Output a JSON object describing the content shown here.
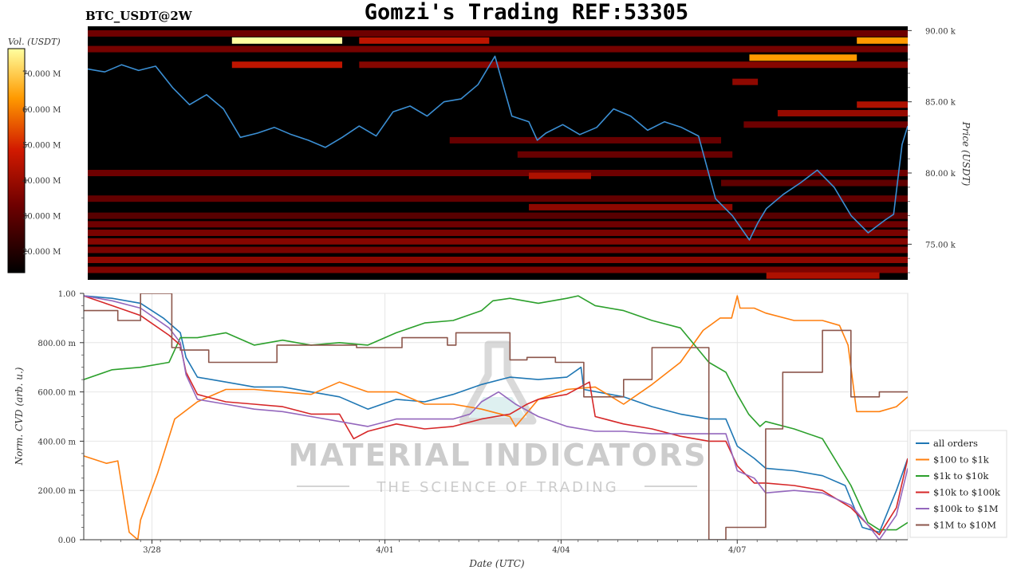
{
  "header": {
    "title": "Gomzi's Trading REF:53305",
    "symbol": "BTC_USDT@2W"
  },
  "colorbar": {
    "label": "Vol. (USDT)",
    "ticks": [
      "20.000 M",
      "30.000 M",
      "40.000 M",
      "50.000 M",
      "60.000 M",
      "70.000 M"
    ],
    "tick_values": [
      20,
      30,
      40,
      50,
      60,
      70
    ],
    "range": [
      14,
      77
    ]
  },
  "watermark": {
    "line1": "MATERIAL INDICATORS",
    "line2": "THE SCIENCE OF TRADING"
  },
  "chart_data": [
    {
      "type": "heatmap",
      "ylabel": "Price (USDT)",
      "yticks": [
        "75.00 k",
        "80.00 k",
        "85.00 k",
        "90.00 k"
      ],
      "ytick_values": [
        75,
        80,
        85,
        90
      ],
      "ylim": [
        72.5,
        90.3
      ],
      "xlim": [
        0,
        14.5
      ],
      "series": [
        {
          "name": "price",
          "color": "#3b8fd4",
          "x": [
            0,
            0.3,
            0.6,
            0.9,
            1.2,
            1.5,
            1.8,
            2.1,
            2.4,
            2.7,
            3.0,
            3.3,
            3.6,
            3.9,
            4.2,
            4.5,
            4.8,
            5.1,
            5.4,
            5.7,
            6.0,
            6.3,
            6.6,
            6.9,
            7.2,
            7.5,
            7.8,
            7.95,
            8.1,
            8.4,
            8.7,
            9.0,
            9.3,
            9.6,
            9.9,
            10.2,
            10.5,
            10.8,
            11.1,
            11.4,
            11.7,
            11.85,
            12.0,
            12.3,
            12.6,
            12.9,
            13.2,
            13.5,
            13.8,
            14.1,
            14.25,
            14.4,
            14.5
          ],
          "y": [
            87.3,
            87.1,
            87.6,
            87.2,
            87.5,
            86.0,
            84.8,
            85.5,
            84.5,
            82.5,
            82.8,
            83.2,
            82.7,
            82.3,
            81.8,
            82.5,
            83.3,
            82.6,
            84.3,
            84.7,
            84.0,
            85.0,
            85.2,
            86.2,
            88.2,
            84.0,
            83.6,
            82.3,
            82.8,
            83.4,
            82.7,
            83.2,
            84.5,
            84.0,
            83.0,
            83.6,
            83.2,
            82.6,
            78.2,
            77.0,
            75.3,
            76.5,
            77.5,
            78.5,
            79.3,
            80.2,
            79.0,
            77.0,
            75.8,
            76.7,
            77.1,
            82.0,
            83.3
          ]
        }
      ],
      "bands": [
        {
          "y": 89.8,
          "x0": 0,
          "x1": 14.5,
          "level": 0.3
        },
        {
          "y": 89.3,
          "x0": 2.55,
          "x1": 4.5,
          "level": 1.0
        },
        {
          "y": 89.3,
          "x0": 4.8,
          "x1": 7.1,
          "level": 0.5
        },
        {
          "y": 89.3,
          "x0": 13.6,
          "x1": 14.5,
          "level": 0.78
        },
        {
          "y": 88.7,
          "x0": 0,
          "x1": 14.5,
          "level": 0.32
        },
        {
          "y": 88.1,
          "x0": 11.7,
          "x1": 13.6,
          "level": 0.78
        },
        {
          "y": 87.6,
          "x0": 2.55,
          "x1": 4.5,
          "level": 0.5
        },
        {
          "y": 87.6,
          "x0": 4.8,
          "x1": 14.5,
          "level": 0.36
        },
        {
          "y": 86.4,
          "x0": 11.4,
          "x1": 11.85,
          "level": 0.38
        },
        {
          "y": 84.8,
          "x0": 13.6,
          "x1": 14.5,
          "level": 0.46
        },
        {
          "y": 84.2,
          "x0": 12.2,
          "x1": 14.5,
          "level": 0.4
        },
        {
          "y": 83.4,
          "x0": 11.6,
          "x1": 14.5,
          "level": 0.3
        },
        {
          "y": 82.3,
          "x0": 6.4,
          "x1": 11.2,
          "level": 0.28
        },
        {
          "y": 81.3,
          "x0": 7.6,
          "x1": 11.4,
          "level": 0.28
        },
        {
          "y": 80.0,
          "x0": 0,
          "x1": 14.5,
          "level": 0.3
        },
        {
          "y": 79.8,
          "x0": 7.8,
          "x1": 8.9,
          "level": 0.46
        },
        {
          "y": 79.3,
          "x0": 11.2,
          "x1": 14.5,
          "level": 0.26
        },
        {
          "y": 78.2,
          "x0": 0,
          "x1": 14.5,
          "level": 0.27
        },
        {
          "y": 77.6,
          "x0": 7.8,
          "x1": 11.4,
          "level": 0.38
        },
        {
          "y": 77.0,
          "x0": 0,
          "x1": 14.5,
          "level": 0.24
        },
        {
          "y": 76.4,
          "x0": 0,
          "x1": 14.5,
          "level": 0.3
        },
        {
          "y": 75.8,
          "x0": 0,
          "x1": 14.5,
          "level": 0.33
        },
        {
          "y": 75.2,
          "x0": 0,
          "x1": 14.5,
          "level": 0.36
        },
        {
          "y": 74.6,
          "x0": 0,
          "x1": 14.5,
          "level": 0.33
        },
        {
          "y": 73.9,
          "x0": 0,
          "x1": 14.5,
          "level": 0.38
        },
        {
          "y": 73.2,
          "x0": 0,
          "x1": 14.5,
          "level": 0.34
        },
        {
          "y": 72.8,
          "x0": 12.0,
          "x1": 14.0,
          "level": 0.46
        }
      ]
    },
    {
      "type": "line",
      "xlabel": "Date (UTC)",
      "ylabel": "Norm. CVD (arb. u.)",
      "ylim": [
        0,
        1
      ],
      "xlim": [
        0,
        14.5
      ],
      "yticks": [
        "0.00",
        "200.00 m",
        "400.00 m",
        "600.00 m",
        "800.00 m",
        "1.00"
      ],
      "ytick_values": [
        0,
        0.2,
        0.4,
        0.6,
        0.8,
        1.0
      ],
      "xticks": [
        "3/28",
        "4/01",
        "4/04",
        "4/07"
      ],
      "xtick_values": [
        1.2,
        5.3,
        8.4,
        11.5
      ],
      "grid": true,
      "legend_position": "right",
      "series": [
        {
          "name": "all orders",
          "color": "#1f77b4",
          "x": [
            0,
            0.5,
            1.0,
            1.4,
            1.7,
            1.8,
            2.0,
            2.5,
            3.0,
            3.5,
            4.0,
            4.5,
            5.0,
            5.5,
            6.0,
            6.5,
            7.0,
            7.5,
            8.0,
            8.5,
            8.75,
            8.8,
            9.5,
            10.0,
            10.5,
            11.0,
            11.3,
            11.5,
            11.8,
            12.0,
            12.5,
            13.0,
            13.4,
            13.7,
            14.0,
            14.3,
            14.5
          ],
          "y": [
            0.99,
            0.98,
            0.96,
            0.9,
            0.84,
            0.74,
            0.66,
            0.64,
            0.62,
            0.62,
            0.6,
            0.58,
            0.53,
            0.57,
            0.56,
            0.59,
            0.63,
            0.66,
            0.65,
            0.66,
            0.7,
            0.61,
            0.58,
            0.54,
            0.51,
            0.49,
            0.49,
            0.38,
            0.33,
            0.29,
            0.28,
            0.26,
            0.22,
            0.05,
            0.03,
            0.2,
            0.33
          ]
        },
        {
          "name": "$100 to $1k",
          "color": "#ff7f0e",
          "x": [
            0,
            0.4,
            0.6,
            0.8,
            0.95,
            1.0,
            1.3,
            1.6,
            2.0,
            2.5,
            3.0,
            3.5,
            4.0,
            4.5,
            5.0,
            5.5,
            6.0,
            6.5,
            7.0,
            7.5,
            7.6,
            8.0,
            8.5,
            9.0,
            9.5,
            10.0,
            10.5,
            10.9,
            11.2,
            11.4,
            11.5,
            11.55,
            11.8,
            12.0,
            12.5,
            13.0,
            13.3,
            13.45,
            13.6,
            14.0,
            14.3,
            14.5
          ],
          "y": [
            0.34,
            0.31,
            0.32,
            0.03,
            0.0,
            0.08,
            0.27,
            0.49,
            0.56,
            0.61,
            0.61,
            0.6,
            0.59,
            0.64,
            0.6,
            0.6,
            0.55,
            0.55,
            0.53,
            0.5,
            0.46,
            0.57,
            0.61,
            0.62,
            0.55,
            0.63,
            0.72,
            0.85,
            0.9,
            0.9,
            0.99,
            0.94,
            0.94,
            0.92,
            0.89,
            0.89,
            0.87,
            0.79,
            0.52,
            0.52,
            0.54,
            0.58
          ]
        },
        {
          "name": "$1k to $10k",
          "color": "#2ca02c",
          "x": [
            0,
            0.5,
            1.0,
            1.5,
            1.7,
            2.0,
            2.5,
            3.0,
            3.5,
            4.0,
            4.5,
            5.0,
            5.5,
            6.0,
            6.5,
            7.0,
            7.2,
            7.5,
            8.0,
            8.5,
            8.7,
            9.0,
            9.5,
            10.0,
            10.5,
            11.0,
            11.3,
            11.5,
            11.7,
            11.9,
            12.0,
            12.5,
            13.0,
            13.5,
            13.8,
            14.0,
            14.3,
            14.5
          ],
          "y": [
            0.65,
            0.69,
            0.7,
            0.72,
            0.82,
            0.82,
            0.84,
            0.79,
            0.81,
            0.79,
            0.8,
            0.79,
            0.84,
            0.88,
            0.89,
            0.93,
            0.97,
            0.98,
            0.96,
            0.98,
            0.99,
            0.95,
            0.93,
            0.89,
            0.86,
            0.72,
            0.68,
            0.59,
            0.51,
            0.46,
            0.48,
            0.45,
            0.41,
            0.22,
            0.07,
            0.04,
            0.04,
            0.07
          ]
        },
        {
          "name": "$10k to $100k",
          "color": "#d62728",
          "x": [
            0,
            0.5,
            1.0,
            1.5,
            1.7,
            1.8,
            2.0,
            2.5,
            3.0,
            3.5,
            4.0,
            4.5,
            4.75,
            5.0,
            5.5,
            6.0,
            6.5,
            7.0,
            7.5,
            7.8,
            8.0,
            8.5,
            8.9,
            9.0,
            9.5,
            10.0,
            10.5,
            11.0,
            11.3,
            11.5,
            11.8,
            12.0,
            12.5,
            13.0,
            13.5,
            13.8,
            14.0,
            14.3,
            14.5
          ],
          "y": [
            0.99,
            0.95,
            0.91,
            0.83,
            0.79,
            0.68,
            0.59,
            0.56,
            0.55,
            0.54,
            0.51,
            0.51,
            0.41,
            0.44,
            0.47,
            0.45,
            0.46,
            0.49,
            0.51,
            0.55,
            0.57,
            0.59,
            0.64,
            0.5,
            0.47,
            0.45,
            0.42,
            0.4,
            0.4,
            0.3,
            0.23,
            0.23,
            0.22,
            0.2,
            0.13,
            0.06,
            0.02,
            0.13,
            0.33
          ]
        },
        {
          "name": "$100k to $1M",
          "color": "#9467bd",
          "x": [
            0,
            0.5,
            1.0,
            1.5,
            1.7,
            1.8,
            2.0,
            2.5,
            3.0,
            3.5,
            4.0,
            4.5,
            5.0,
            5.5,
            6.0,
            6.5,
            6.8,
            7.0,
            7.3,
            7.6,
            8.0,
            8.5,
            9.0,
            9.5,
            10.0,
            10.5,
            11.0,
            11.3,
            11.5,
            11.8,
            12.0,
            12.5,
            13.0,
            13.5,
            13.8,
            14.0,
            14.3,
            14.5
          ],
          "y": [
            0.99,
            0.97,
            0.94,
            0.86,
            0.8,
            0.67,
            0.57,
            0.55,
            0.53,
            0.52,
            0.5,
            0.48,
            0.46,
            0.49,
            0.49,
            0.49,
            0.51,
            0.56,
            0.6,
            0.55,
            0.5,
            0.46,
            0.44,
            0.44,
            0.43,
            0.43,
            0.43,
            0.43,
            0.28,
            0.25,
            0.19,
            0.2,
            0.19,
            0.14,
            0.06,
            0.0,
            0.1,
            0.29
          ]
        },
        {
          "name": "$1M to $10M",
          "color": "#8c564b",
          "x": [
            0,
            0.6,
            0.6,
            1.0,
            1.0,
            1.55,
            1.55,
            1.7,
            1.7,
            2.2,
            2.2,
            3.4,
            3.4,
            4.8,
            4.8,
            5.6,
            5.6,
            6.4,
            6.4,
            6.55,
            6.55,
            7.5,
            7.5,
            7.8,
            7.8,
            8.3,
            8.3,
            8.8,
            8.8,
            9.5,
            9.5,
            10.0,
            10.0,
            11.0,
            11.0,
            11.3,
            11.3,
            12.0,
            12.0,
            12.3,
            12.3,
            13.0,
            13.0,
            13.5,
            13.5,
            14.0,
            14.0,
            14.5
          ],
          "y": [
            0.93,
            0.93,
            0.89,
            0.89,
            1.0,
            1.0,
            0.78,
            0.78,
            0.77,
            0.77,
            0.72,
            0.72,
            0.79,
            0.79,
            0.78,
            0.78,
            0.82,
            0.82,
            0.79,
            0.79,
            0.84,
            0.84,
            0.73,
            0.73,
            0.74,
            0.74,
            0.72,
            0.72,
            0.58,
            0.58,
            0.65,
            0.65,
            0.78,
            0.78,
            0.0,
            0.0,
            0.05,
            0.05,
            0.45,
            0.45,
            0.68,
            0.68,
            0.85,
            0.85,
            0.58,
            0.58,
            0.6,
            0.6
          ]
        }
      ]
    }
  ]
}
